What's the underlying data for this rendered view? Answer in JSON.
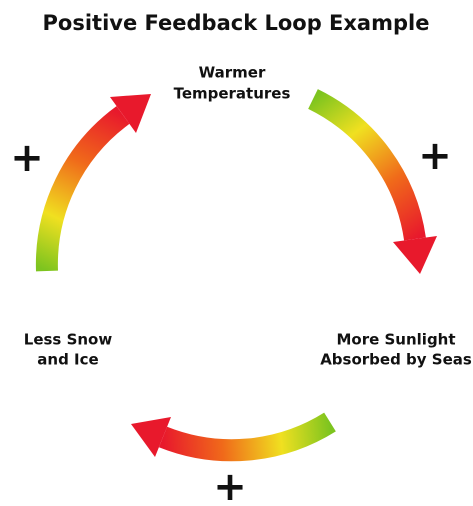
{
  "title": "Positive Feedback Loop Example",
  "nodes": [
    {
      "label": [
        "Warmer",
        "Temperatures"
      ]
    },
    {
      "label": [
        "More Sunlight",
        "Absorbed by Seas"
      ]
    },
    {
      "label": [
        "Less Snow",
        "and Ice"
      ]
    }
  ],
  "signs": [
    "+",
    "+",
    "+"
  ]
}
